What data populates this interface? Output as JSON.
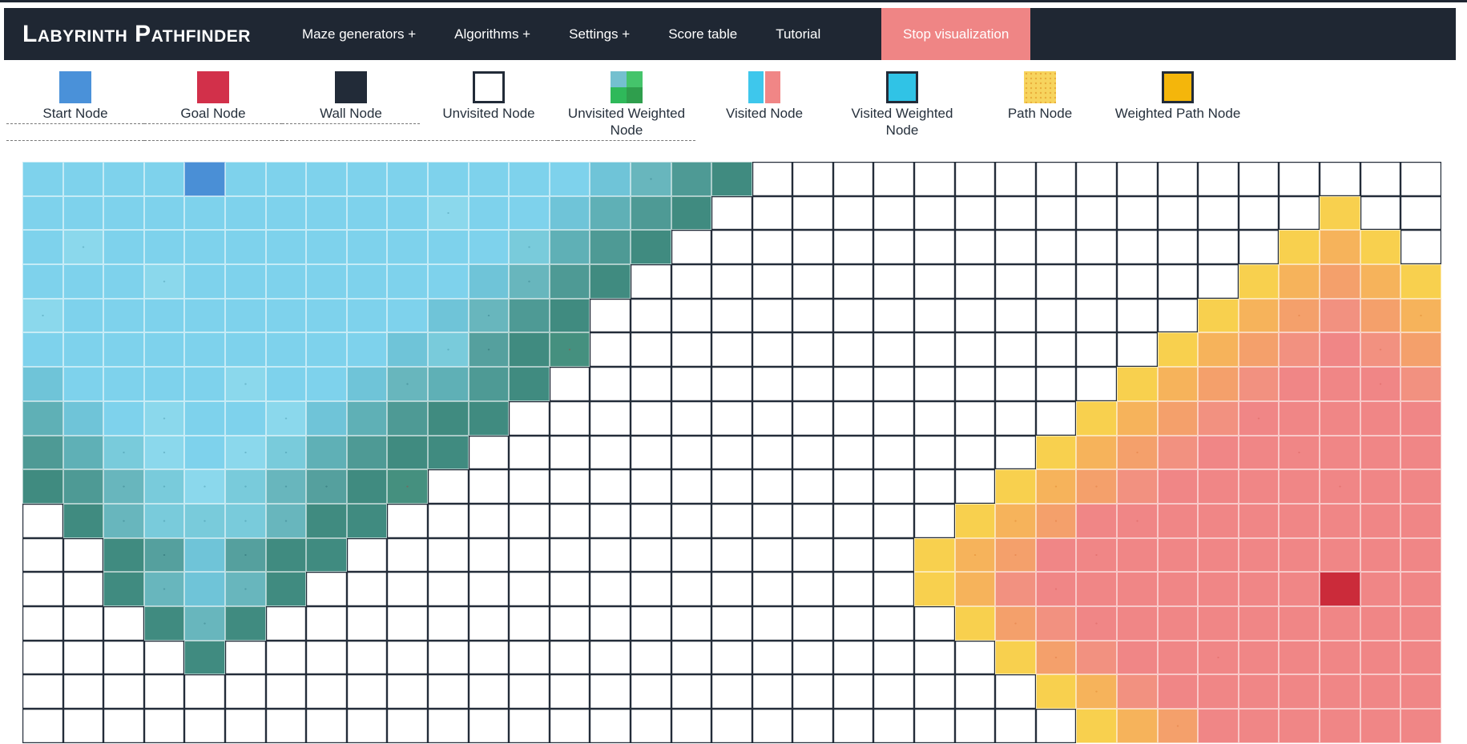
{
  "navbar": {
    "title": "Labyrinth Pathfinder",
    "links": [
      "Maze generators +",
      "Algorithms +",
      "Settings +",
      "Score table",
      "Tutorial"
    ],
    "stop_button": "Stop visualization",
    "bg": "#1f2733",
    "accent": "#ef8585"
  },
  "legend": {
    "items": [
      {
        "label": "Start Node",
        "swatch": "solid",
        "colors": [
          "#4a91d9"
        ],
        "dashed": true,
        "labelline": true
      },
      {
        "label": "Goal Node",
        "swatch": "solid",
        "colors": [
          "#d2304a"
        ],
        "dashed": true,
        "labelline": true
      },
      {
        "label": "Wall Node",
        "swatch": "solid",
        "colors": [
          "#222b38"
        ],
        "dashed": true,
        "labelline": true
      },
      {
        "label": "Unvisited Node",
        "swatch": "bordered",
        "colors": [
          "#ffffff"
        ],
        "dashed": true,
        "labelline": false
      },
      {
        "label": "Unvisited Weighted Node",
        "swatch": "quad",
        "colors": [
          "#74c0cf",
          "#45c46b",
          "#2fb95a",
          "#2f9e4d"
        ],
        "dashed": true,
        "labelline": false
      },
      {
        "label": "Visited Node",
        "swatch": "split",
        "colors": [
          "#3ec7ec",
          "#f08686"
        ],
        "dashed": false,
        "labelline": false
      },
      {
        "label": "Visited Weighted Node",
        "swatch": "bordered",
        "colors": [
          "#30c3e6"
        ],
        "dashed": false,
        "labelline": false
      },
      {
        "label": "Path Node",
        "swatch": "dotted",
        "colors": [
          "#f7d45e"
        ],
        "dashed": false,
        "labelline": false
      },
      {
        "label": "Weighted Path Node",
        "swatch": "bordered",
        "colors": [
          "#f4b60b"
        ],
        "dashed": false,
        "labelline": false
      }
    ]
  },
  "grid": {
    "cols": 35,
    "rows_count": 17,
    "start": {
      "row": 0,
      "col": 4
    },
    "goal": {
      "row": 12,
      "col": 32
    },
    "rows": [
      "aaaaSaaaaaaaaabCde.................",
      "aaaaaaaaaaAaabcde...............y..",
      "aAaaaaaaaaaaBcde...............ymy.",
      "aaaAaaaaaaabCde...............ymnmy",
      "AaaaaaaaaabCde...............ymNonM",
      "aaaaaaaaabBDeE..............ymnopOn",
      "baaaaAaabCcde..............ymnoppPo",
      "cbaAaaAbcdee..............ymnoPpppp",
      "dcBAaABcdee..............ymNoppPppp",
      "edCBABCDeE..............yMNoppppPpp",
      ".eCBBBCee..............yMNpPppppppp",
      "..eDbDee..............yMNpPpppppppp",
      "..eCbCe...............ymoPppppppGpp",
      "...eCe.................yNoPpppppppp",
      "....e...................yNoppPppppp",
      ".........................yMoppppppp",
      "..........................ymNpppppp"
    ],
    "palette": {
      ".": {
        "color": "#ffffff",
        "name": "unvisited"
      },
      "S": {
        "color": "#4a8fd6",
        "name": "start"
      },
      "G": {
        "color": "#cb2b3a",
        "name": "goal"
      },
      "a": {
        "color": "#7ed2ec",
        "name": "visited-1"
      },
      "b": {
        "color": "#6fc4d8",
        "name": "visited-2"
      },
      "c": {
        "color": "#5fb0b6",
        "name": "visited-3"
      },
      "d": {
        "color": "#4e9a95",
        "name": "visited-4"
      },
      "e": {
        "color": "#408b80",
        "name": "visited-5"
      },
      "A": {
        "color": "#8bd8ec",
        "dots": "rgba(30,110,130,0.30)",
        "name": "visited-weighted-1"
      },
      "B": {
        "color": "#79cbdb",
        "dots": "rgba(30,110,130,0.30)",
        "name": "visited-weighted-2"
      },
      "C": {
        "color": "#68b6bd",
        "dots": "rgba(25,95,110,0.32)",
        "name": "visited-weighted-3"
      },
      "D": {
        "color": "#55a09e",
        "dots": "rgba(20,80,90,0.35)",
        "name": "visited-weighted-4"
      },
      "E": {
        "color": "#45907f",
        "dots": "rgba(170,60,60,0.40)",
        "name": "visited-weighted-5"
      },
      "y": {
        "color": "#f8d04e",
        "name": "frontier-1"
      },
      "m": {
        "color": "#f6b35b",
        "name": "frontier-2"
      },
      "n": {
        "color": "#f4a06b",
        "name": "frontier-3"
      },
      "o": {
        "color": "#f29180",
        "name": "frontier-4"
      },
      "p": {
        "color": "#f08686",
        "name": "visited-goal"
      },
      "Y": {
        "color": "#f8d04e",
        "dots": "rgba(225,150,40,0.45)",
        "name": "frontier-weighted-1"
      },
      "M": {
        "color": "#f6b35b",
        "dots": "rgba(222,130,40,0.45)",
        "name": "frontier-weighted-2"
      },
      "N": {
        "color": "#f4a06b",
        "dots": "rgba(220,115,55,0.42)",
        "name": "frontier-weighted-3"
      },
      "O": {
        "color": "#f29180",
        "dots": "rgba(218,105,80,0.45)",
        "name": "frontier-weighted-4"
      },
      "P": {
        "color": "#f08686",
        "dots": "rgba(215,95,90,0.45)",
        "name": "visited-goal-weighted"
      }
    }
  }
}
